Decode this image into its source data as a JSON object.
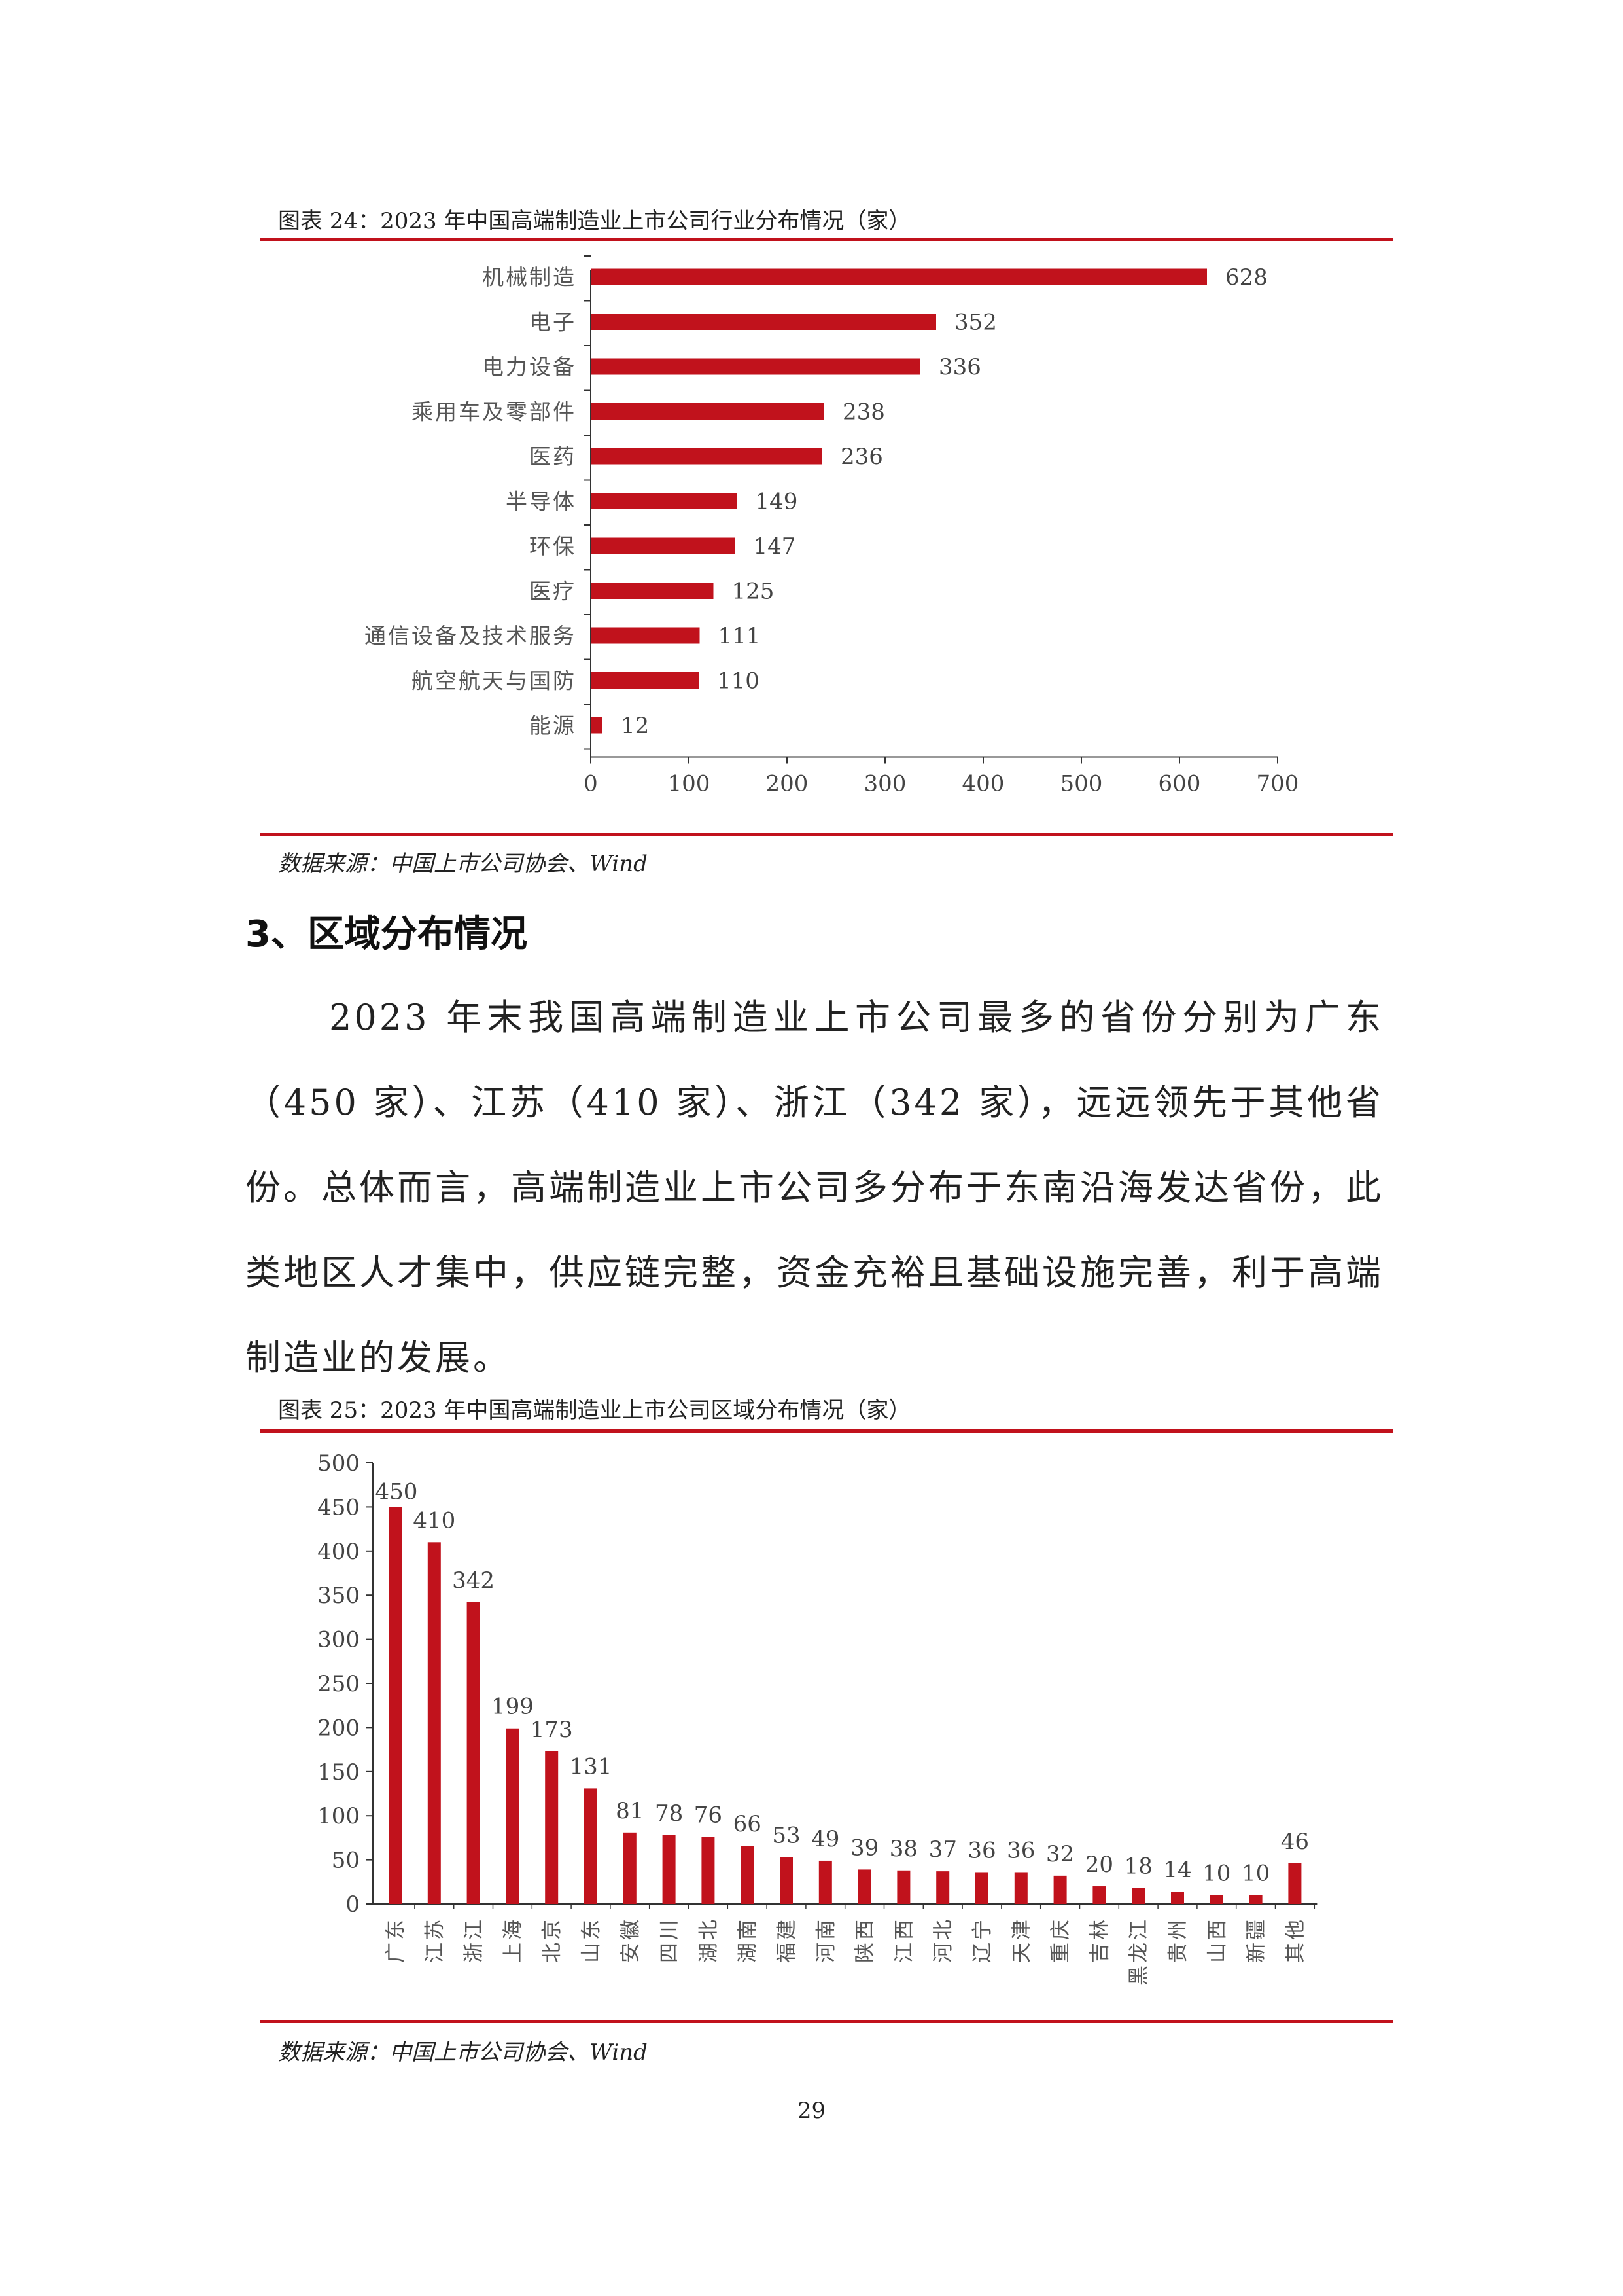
{
  "figure24": {
    "title": "图表 24：2023 年中国高端制造业上市公司行业分布情况（家）",
    "source": "数据来源：中国上市公司协会、Wind"
  },
  "section": {
    "heading": "3、区域分布情况",
    "paragraph": "2023 年末我国高端制造业上市公司最多的省份分别为广东（450 家）、江苏（410 家）、浙江（342 家），远远领先于其他省份。总体而言，高端制造业上市公司多分布于东南沿海发达省份，此类地区人才集中，供应链完整，资金充裕且基础设施完善，利于高端制造业的发展。"
  },
  "figure25": {
    "title": "图表 25：2023 年中国高端制造业上市公司区域分布情况（家）",
    "source": "数据来源：中国上市公司协会、Wind"
  },
  "page_number": "29",
  "colors": {
    "bar": "#c1121c",
    "rule": "#c1121c",
    "axis": "#333333"
  },
  "chart_data": [
    {
      "type": "bar",
      "orientation": "horizontal",
      "title": "图表 24：2023 年中国高端制造业上市公司行业分布情况（家）",
      "categories": [
        "机械制造",
        "电子",
        "电力设备",
        "乘用车及零部件",
        "医药",
        "半导体",
        "环保",
        "医疗",
        "通信设备及技术服务",
        "航空航天与国防",
        "能源"
      ],
      "values": [
        628,
        352,
        336,
        238,
        236,
        149,
        147,
        125,
        111,
        110,
        12
      ],
      "xlim": [
        0,
        700
      ],
      "xticks": [
        0,
        100,
        200,
        300,
        400,
        500,
        600,
        700
      ],
      "data_labels": true,
      "grid": false,
      "legend": "none"
    },
    {
      "type": "bar",
      "orientation": "vertical",
      "title": "图表 25：2023 年中国高端制造业上市公司区域分布情况（家）",
      "categories": [
        "广东",
        "江苏",
        "浙江",
        "上海",
        "北京",
        "山东",
        "安徽",
        "四川",
        "湖北",
        "湖南",
        "福建",
        "河南",
        "陕西",
        "江西",
        "河北",
        "辽宁",
        "天津",
        "重庆",
        "吉林",
        "黑龙江",
        "贵州",
        "山西",
        "新疆",
        "其他"
      ],
      "values": [
        450,
        410,
        342,
        199,
        173,
        131,
        81,
        78,
        76,
        66,
        53,
        49,
        39,
        38,
        37,
        36,
        36,
        32,
        20,
        18,
        14,
        10,
        10,
        46
      ],
      "ylim": [
        0,
        500
      ],
      "yticks": [
        0,
        50,
        100,
        150,
        200,
        250,
        300,
        350,
        400,
        450,
        500
      ],
      "data_labels": true,
      "grid": false,
      "legend": "none"
    }
  ]
}
